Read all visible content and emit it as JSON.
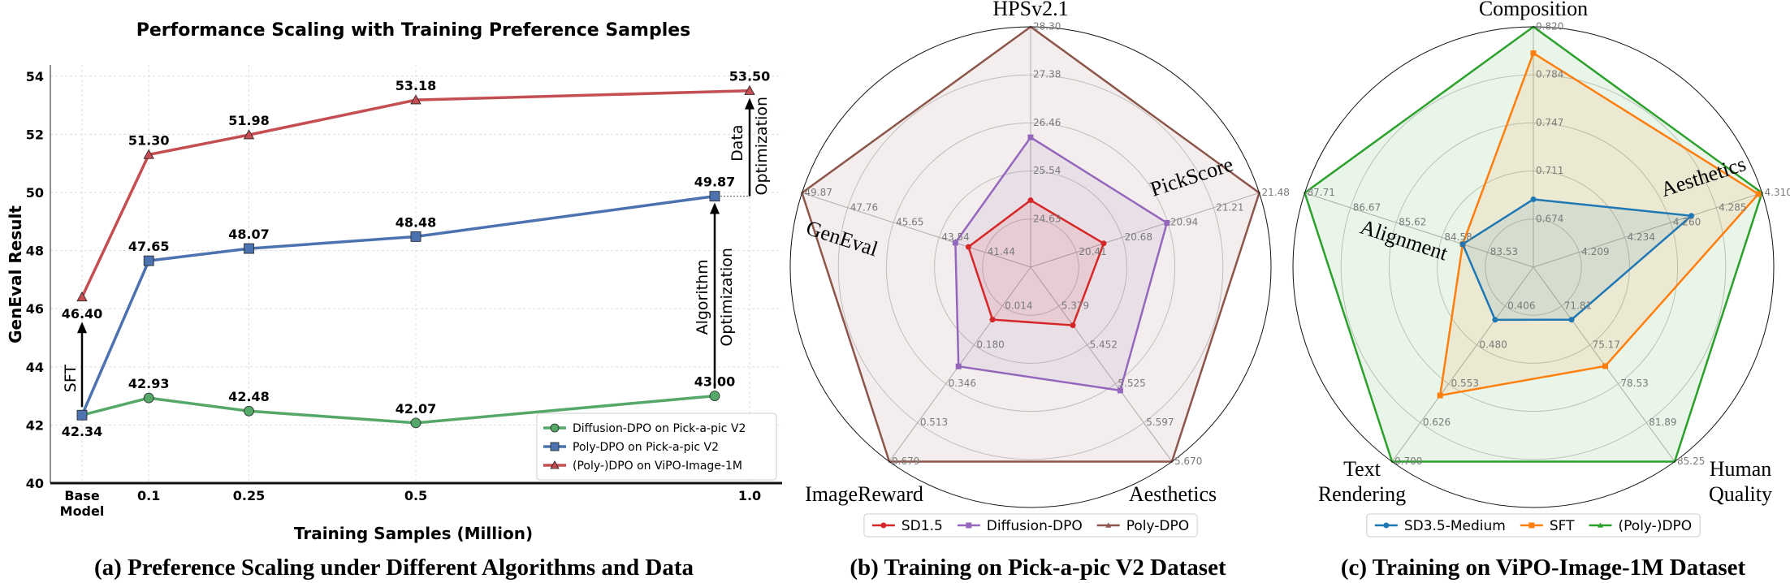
{
  "chart_data": [
    {
      "type": "line",
      "title": "Performance Scaling with Training Preference Samples",
      "xlabel": "Training Samples (Million)",
      "ylabel": "GenEval Result",
      "x": [
        0,
        0.1,
        0.25,
        0.5,
        1.0
      ],
      "x_tick_labels": [
        "Base\nModel",
        "0.1",
        "0.25",
        "0.5",
        "1.0"
      ],
      "y_ticks": [
        40,
        42,
        44,
        46,
        48,
        50,
        52,
        54
      ],
      "ylim": [
        40,
        55
      ],
      "grid": true,
      "legend_position": "bottom-right",
      "series": [
        {
          "name": "Diffusion-DPO on Pick-a-pic V2",
          "color": "#55a868",
          "marker": "circle",
          "values": [
            42.34,
            42.93,
            42.48,
            42.07,
            43.0
          ],
          "labels": [
            "42.34",
            "42.93",
            "42.48",
            "42.07",
            "43.00"
          ]
        },
        {
          "name": "Poly-DPO on Pick-a-pic V2",
          "color": "#4c72b0",
          "marker": "square",
          "values": [
            42.34,
            47.65,
            48.07,
            48.48,
            49.87
          ],
          "labels": [
            "",
            "47.65",
            "48.07",
            "48.48",
            "49.87"
          ]
        },
        {
          "name": "(Poly-)DPO on ViPO-Image-1M",
          "color": "#c44e52",
          "marker": "triangle",
          "values": [
            46.4,
            51.3,
            51.98,
            53.18,
            53.5
          ],
          "labels": [
            "46.40",
            "51.30",
            "51.98",
            "53.18",
            "53.50"
          ]
        }
      ],
      "annotations": {
        "sft": "SFT",
        "algorithm": [
          "Algorithm",
          "Optimization"
        ],
        "data": [
          "Data",
          "Optimization"
        ]
      },
      "caption": "(a) Preference Scaling under Different Algorithms and Data"
    },
    {
      "type": "radar",
      "axes": [
        {
          "label": "HPSv2.1",
          "ticks": [
            "24.63",
            "25.54",
            "26.46",
            "27.38",
            "28.30"
          ]
        },
        {
          "label": "PickScore",
          "ticks": [
            "20.41",
            "20.68",
            "20.94",
            "21.21",
            "21.48"
          ]
        },
        {
          "label": "Aesthetics",
          "ticks": [
            "5.379",
            "5.452",
            "5.525",
            "5.597",
            "5.670"
          ]
        },
        {
          "label": "ImageReward",
          "ticks": [
            "0.014",
            "0.180",
            "0.346",
            "0.513",
            "0.679"
          ]
        },
        {
          "label": "GenEval",
          "ticks": [
            "41.44",
            "43.54",
            "45.65",
            "47.76",
            "49.87"
          ]
        }
      ],
      "series": [
        {
          "name": "Poly-DPO",
          "color": "#8c564b",
          "marker": "none",
          "values": [
            28.3,
            21.48,
            5.67,
            0.679,
            49.87
          ]
        },
        {
          "name": "Diffusion-DPO",
          "color": "#9467bd",
          "marker": "square",
          "values": [
            26.19,
            20.94,
            5.537,
            0.272,
            42.8
          ]
        },
        {
          "name": "SD1.5",
          "color": "#d62728",
          "marker": "circle",
          "values": [
            24.99,
            20.57,
            5.415,
            0.072,
            42.2
          ]
        }
      ],
      "legend_order": [
        "SD1.5",
        "Diffusion-DPO",
        "Poly-DPO"
      ],
      "caption": "(b) Training on Pick-a-pic V2 Dataset"
    },
    {
      "type": "radar",
      "axes": [
        {
          "label": "Composition",
          "ticks": [
            "0.674",
            "0.711",
            "0.747",
            "0.784",
            "0.820"
          ]
        },
        {
          "label": "Aesthetics",
          "ticks": [
            "4.209",
            "4.234",
            "4.260",
            "4.285",
            "4.310"
          ]
        },
        {
          "label": "Human Quality",
          "ticks": [
            "71.81",
            "75.17",
            "78.53",
            "81.89",
            "85.25"
          ]
        },
        {
          "label": "Text Rendering",
          "ticks": [
            "0.406",
            "0.480",
            "0.553",
            "0.626",
            "0.700"
          ]
        },
        {
          "label": "Alignment",
          "ticks": [
            "83.53",
            "84.58",
            "85.62",
            "86.67",
            "87.71"
          ]
        }
      ],
      "series": [
        {
          "name": "(Poly-)DPO",
          "color": "#2ca02c",
          "marker": "none",
          "values": [
            0.82,
            4.31,
            85.25,
            0.7,
            87.71
          ]
        },
        {
          "name": "SFT",
          "color": "#ff7f0e",
          "marker": "square",
          "values": [
            0.8,
            4.308,
            77.0,
            0.575,
            84.1
          ]
        },
        {
          "name": "SD3.5-Medium",
          "color": "#1f77b4",
          "marker": "circle",
          "values": [
            0.689,
            4.271,
            72.99,
            0.432,
            84.1
          ]
        }
      ],
      "legend_order": [
        "SD3.5-Medium",
        "SFT",
        "(Poly-)DPO"
      ],
      "caption": "(c) Training on ViPO-Image-1M Dataset"
    }
  ],
  "text": {
    "b_axis_labels": {
      "hps": "HPSv2.1",
      "pick": "PickScore",
      "aes": "Aesthetics",
      "ir": "ImageReward",
      "gen": "GenEval"
    },
    "c_axis_labels": {
      "comp": "Composition",
      "aes": "Aesthetics",
      "hq1": "Human",
      "hq2": "Quality",
      "tr1": "Text",
      "tr2": "Rendering",
      "align": "Alignment"
    }
  }
}
